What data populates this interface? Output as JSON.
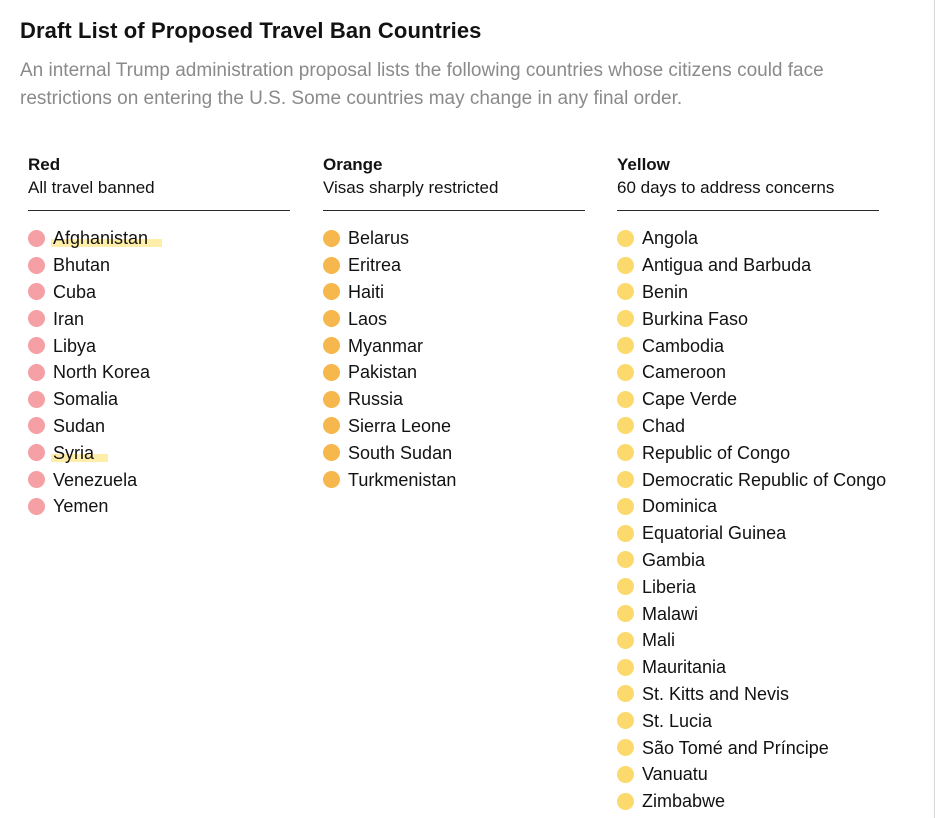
{
  "title": "Draft List of Proposed Travel Ban Countries",
  "subtitle": "An internal Trump administration proposal lists the following countries whose citizens could face restrictions on entering the U.S. Some countries may change in any final order.",
  "colors": {
    "red": "#f4a0a4",
    "orange": "#f6b74c",
    "yellow": "#fbd96c",
    "highlight": "#ffe88c"
  },
  "columns": [
    {
      "heading": "Red",
      "subheading": "All travel banned",
      "color": "#f4a0a4",
      "countries": [
        {
          "name": "Afghanistan",
          "highlighted": true
        },
        {
          "name": "Bhutan",
          "highlighted": false
        },
        {
          "name": "Cuba",
          "highlighted": false
        },
        {
          "name": "Iran",
          "highlighted": false
        },
        {
          "name": "Libya",
          "highlighted": false
        },
        {
          "name": "North Korea",
          "highlighted": false
        },
        {
          "name": "Somalia",
          "highlighted": false
        },
        {
          "name": "Sudan",
          "highlighted": false
        },
        {
          "name": "Syria",
          "highlighted": true
        },
        {
          "name": "Venezuela",
          "highlighted": false
        },
        {
          "name": "Yemen",
          "highlighted": false
        }
      ]
    },
    {
      "heading": "Orange",
      "subheading": "Visas sharply restricted",
      "color": "#f6b74c",
      "countries": [
        {
          "name": "Belarus",
          "highlighted": false
        },
        {
          "name": "Eritrea",
          "highlighted": false
        },
        {
          "name": "Haiti",
          "highlighted": false
        },
        {
          "name": "Laos",
          "highlighted": false
        },
        {
          "name": "Myanmar",
          "highlighted": false
        },
        {
          "name": "Pakistan",
          "highlighted": false
        },
        {
          "name": "Russia",
          "highlighted": false
        },
        {
          "name": "Sierra Leone",
          "highlighted": false
        },
        {
          "name": "South Sudan",
          "highlighted": false
        },
        {
          "name": "Turkmenistan",
          "highlighted": false
        }
      ]
    },
    {
      "heading": "Yellow",
      "subheading": "60 days to address concerns",
      "color": "#fbd96c",
      "countries": [
        {
          "name": "Angola",
          "highlighted": false
        },
        {
          "name": "Antigua and Barbuda",
          "highlighted": false
        },
        {
          "name": "Benin",
          "highlighted": false
        },
        {
          "name": "Burkina Faso",
          "highlighted": false
        },
        {
          "name": "Cambodia",
          "highlighted": false
        },
        {
          "name": "Cameroon",
          "highlighted": false
        },
        {
          "name": "Cape Verde",
          "highlighted": false
        },
        {
          "name": "Chad",
          "highlighted": false
        },
        {
          "name": "Republic of Congo",
          "highlighted": false
        },
        {
          "name": "Democratic Republic of Congo",
          "highlighted": false
        },
        {
          "name": "Dominica",
          "highlighted": false
        },
        {
          "name": "Equatorial Guinea",
          "highlighted": false
        },
        {
          "name": "Gambia",
          "highlighted": false
        },
        {
          "name": "Liberia",
          "highlighted": false
        },
        {
          "name": "Malawi",
          "highlighted": false
        },
        {
          "name": "Mali",
          "highlighted": false
        },
        {
          "name": "Mauritania",
          "highlighted": false
        },
        {
          "name": "St. Kitts and Nevis",
          "highlighted": false
        },
        {
          "name": "St. Lucia",
          "highlighted": false
        },
        {
          "name": "São Tomé and Príncipe",
          "highlighted": false
        },
        {
          "name": "Vanuatu",
          "highlighted": false
        },
        {
          "name": "Zimbabwe",
          "highlighted": false
        }
      ]
    }
  ]
}
